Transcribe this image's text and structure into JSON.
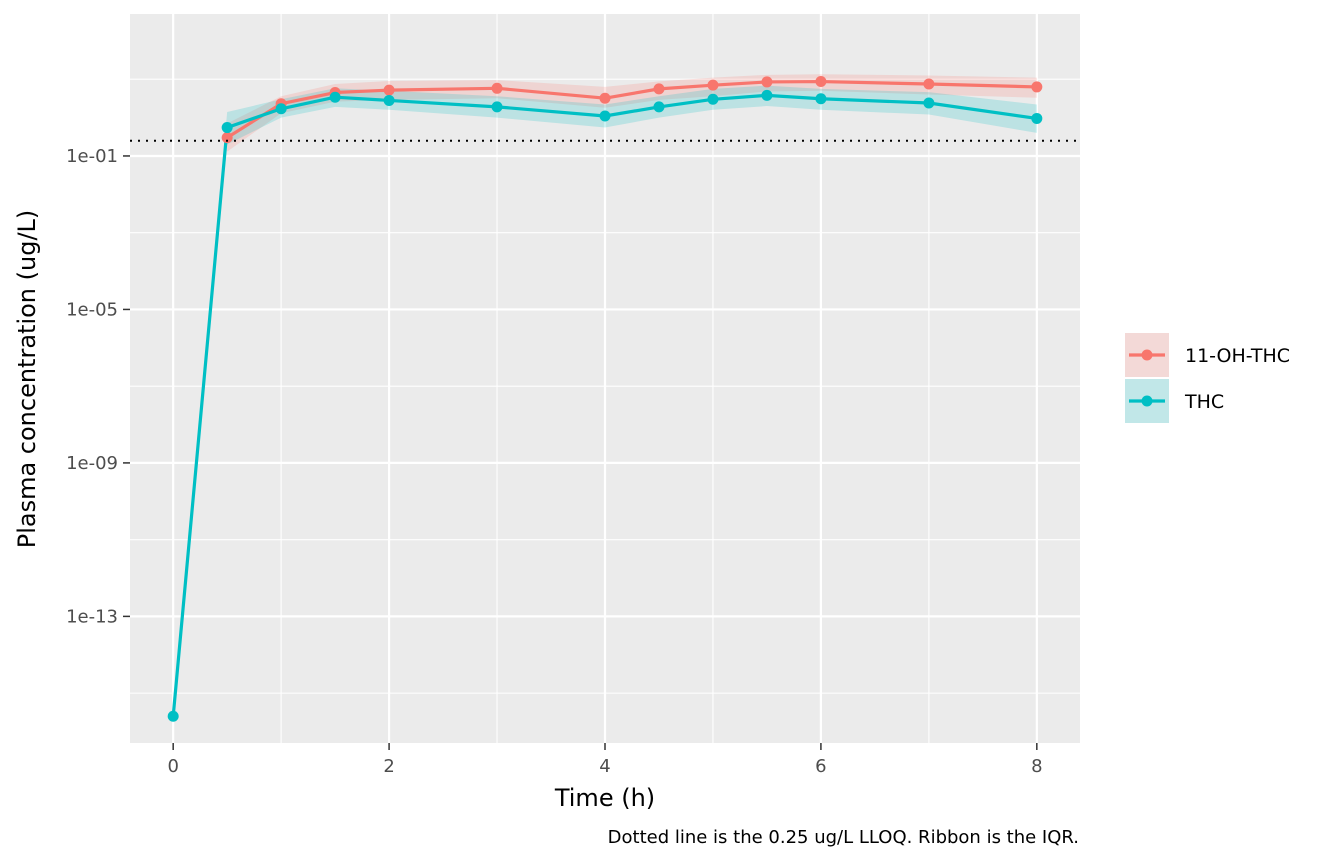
{
  "chart_data": {
    "type": "line",
    "title": "",
    "xlabel": "Time (h)",
    "ylabel": "Plasma concentration (ug/L)",
    "caption": "Dotted line is the 0.25 ug/L LLOQ. Ribbon is the IQR.",
    "x_scale": "linear",
    "y_scale": "log10",
    "xlim": [
      -0.4,
      8.4
    ],
    "ylim_log10": [
      -16.3,
      2.7
    ],
    "x_ticks": [
      0,
      2,
      4,
      6,
      8
    ],
    "x_tick_labels": [
      "0",
      "2",
      "4",
      "6",
      "8"
    ],
    "y_ticks": [
      0.1,
      1e-05,
      1e-09,
      1e-13
    ],
    "y_tick_labels": [
      "1e-01",
      "1e-05",
      "1e-09",
      "1e-13"
    ],
    "grid": true,
    "hline": {
      "value": 0.25,
      "style": "dotted",
      "color": "#000000"
    },
    "legend": {
      "position": "right",
      "ribbon": true
    },
    "series": [
      {
        "name": "11-OH-THC",
        "color": "#F8766D",
        "x": [
          0.5,
          1,
          1.5,
          2,
          3,
          4,
          4.5,
          5,
          5.5,
          6,
          7,
          8
        ],
        "y": [
          0.3,
          2.3,
          4.5,
          5.2,
          5.8,
          3.2,
          5.6,
          7.0,
          8.5,
          8.7,
          7.5,
          6.3
        ],
        "q1": [
          0.13,
          1.3,
          2.6,
          2.9,
          3.2,
          1.8,
          2.9,
          3.6,
          4.8,
          5.0,
          4.0,
          3.3
        ],
        "q3": [
          0.7,
          3.6,
          7.5,
          9.0,
          9.5,
          6.3,
          8.8,
          11.0,
          13.0,
          13.5,
          12.5,
          11.0
        ]
      },
      {
        "name": "THC",
        "color": "#00BFC4",
        "x": [
          0,
          0.5,
          1,
          1.5,
          2,
          3,
          4,
          4.5,
          5,
          5.5,
          6,
          7,
          8
        ],
        "y": [
          2.5e-16,
          0.55,
          1.7,
          3.4,
          2.8,
          1.9,
          1.1,
          1.9,
          3.0,
          3.8,
          3.1,
          2.4,
          0.95
        ],
        "q1": [
          2.5e-16,
          0.2,
          1.0,
          1.9,
          1.6,
          1.0,
          0.55,
          1.0,
          1.6,
          2.0,
          1.6,
          1.2,
          0.4
        ],
        "q3": [
          2.5e-16,
          1.4,
          3.0,
          5.8,
          5.0,
          3.6,
          2.2,
          3.6,
          5.6,
          6.8,
          5.6,
          4.6,
          2.2
        ]
      }
    ]
  }
}
